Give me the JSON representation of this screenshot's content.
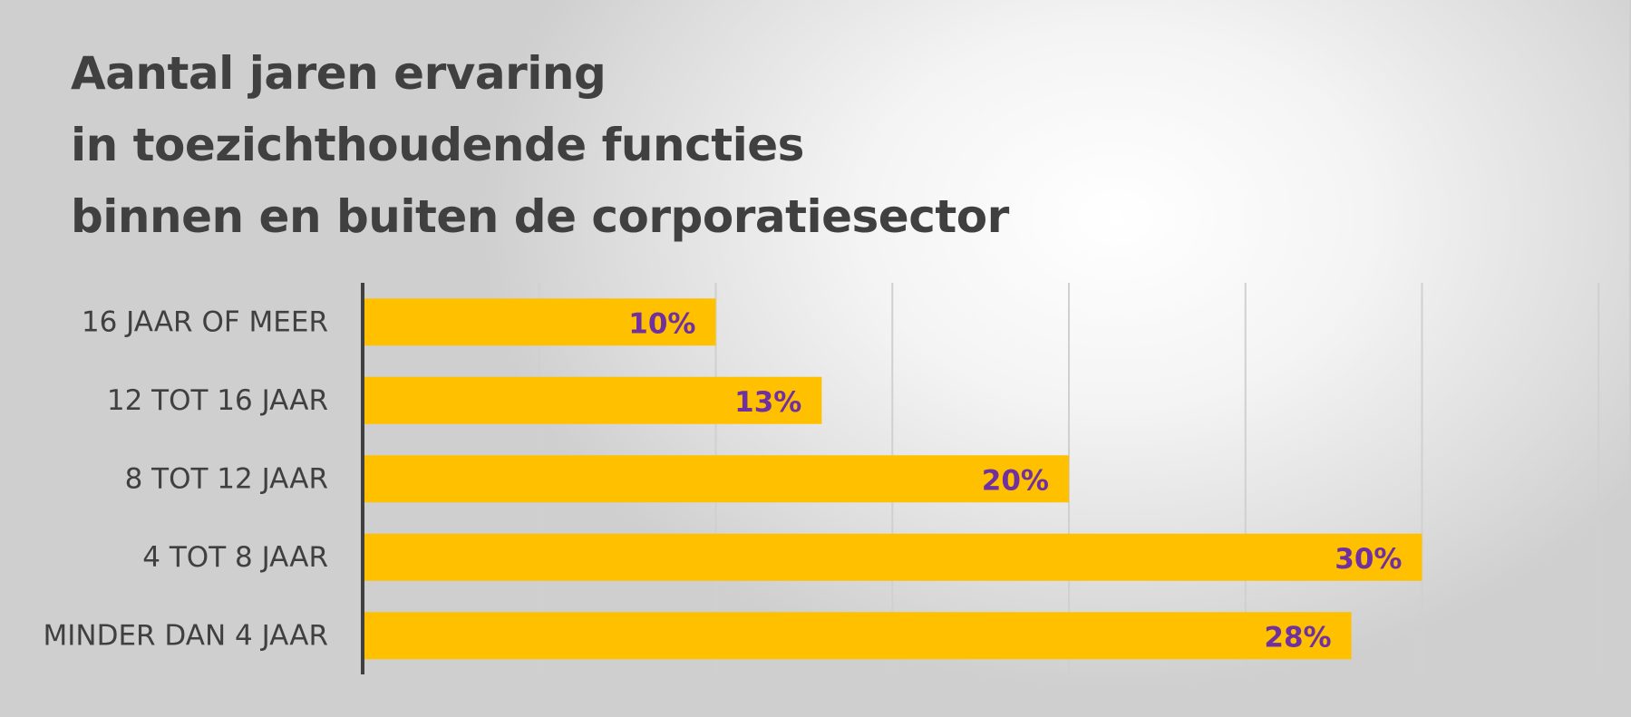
{
  "title_lines": [
    "Aantal jaren ervaring",
    "in toezichthoudende functies",
    "binnen en buiten de corporatiesector"
  ],
  "colors": {
    "bar": "#ffc000",
    "data_label": "#7030a0",
    "text": "#404040",
    "gridline": "#d0d0d0",
    "axis": "#404040"
  },
  "chart_data": {
    "type": "bar",
    "orientation": "horizontal",
    "title": "Aantal jaren ervaring in toezichthoudende functies binnen en buiten de corporatiesector",
    "categories": [
      "16 JAAR OF MEER",
      "12 TOT 16 JAAR",
      "8 TOT 12 JAAR",
      "4 TOT 8 JAAR",
      "MINDER DAN 4 JAAR"
    ],
    "values": [
      10,
      13,
      20,
      30,
      28
    ],
    "data_labels": [
      "10%",
      "13%",
      "20%",
      "30%",
      "28%"
    ],
    "unit": "%",
    "xlim": [
      0,
      35
    ],
    "gridline_step": 5,
    "grid": true,
    "legend": "none"
  }
}
